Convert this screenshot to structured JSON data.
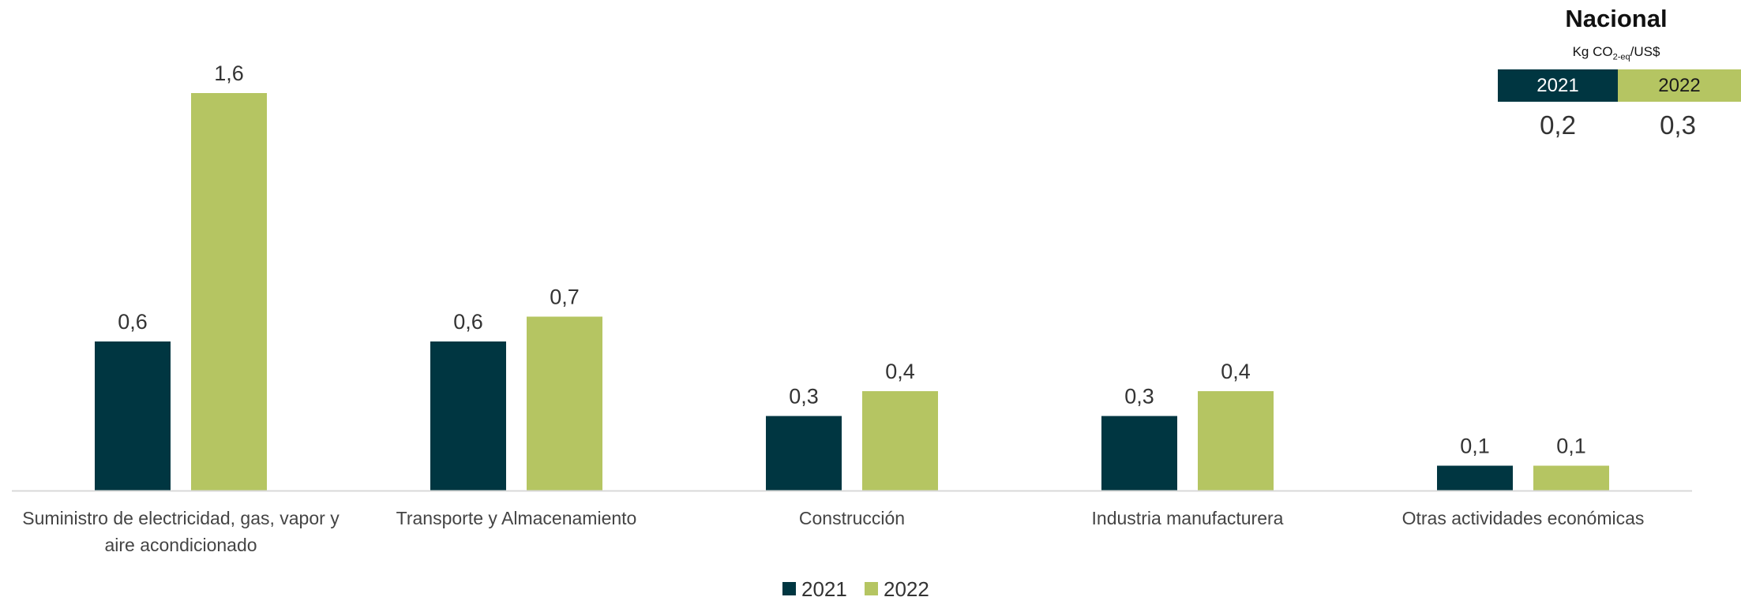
{
  "chart_data": {
    "type": "bar",
    "categories": [
      [
        "Suministro de electricidad, gas, vapor y",
        "aire acondicionado"
      ],
      [
        "Transporte y Almacenamiento"
      ],
      [
        "Construcción"
      ],
      [
        "Industria manufacturera"
      ],
      [
        "Otras actividades económicas"
      ]
    ],
    "series": [
      {
        "name": "2021",
        "color": "#003641",
        "values": [
          0.6,
          0.6,
          0.3,
          0.3,
          0.1
        ],
        "labels": [
          "0,6",
          "0,6",
          "0,3",
          "0,3",
          "0,1"
        ]
      },
      {
        "name": "2022",
        "color": "#b5c562",
        "values": [
          1.6,
          0.7,
          0.4,
          0.4,
          0.1
        ],
        "labels": [
          "1,6",
          "0,7",
          "0,4",
          "0,4",
          "0,1"
        ]
      }
    ],
    "ylim": [
      0,
      1.6
    ],
    "grid": false,
    "legend": "bottom"
  },
  "national": {
    "title": "Nacional",
    "unit_prefix": "Kg CO",
    "unit_sub": "2-eq",
    "unit_suffix": "/US$",
    "years": [
      {
        "year": "2021",
        "value": "0,2"
      },
      {
        "year": "2022",
        "value": "0,3"
      }
    ]
  }
}
